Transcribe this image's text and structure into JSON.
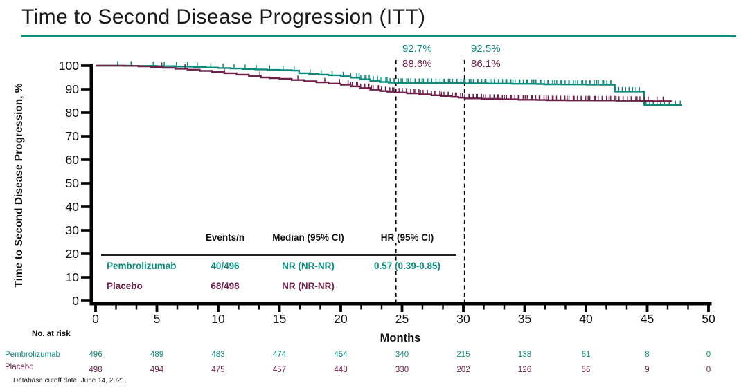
{
  "title": "Time to Second Disease Progression (ITT)",
  "footer": "Database cutoff date: June 14, 2021.",
  "colors": {
    "pembrolizumab": "#0E8A7D",
    "placebo": "#6E2149",
    "axis": "#000000",
    "dashed_line": "#000000"
  },
  "chart_data": {
    "type": "line",
    "subtype": "kaplan-meier-step",
    "title": "Time to Second Disease Progression (ITT)",
    "xlabel": "Months",
    "ylabel": "Time to Second Disease Progression, %",
    "xlim": [
      0,
      50
    ],
    "ylim": [
      0,
      100
    ],
    "grid": false,
    "x_ticks": [
      0,
      5,
      10,
      15,
      20,
      25,
      30,
      35,
      40,
      45,
      50
    ],
    "y_ticks": [
      0,
      10,
      20,
      30,
      40,
      50,
      60,
      70,
      80,
      90,
      100
    ],
    "series": [
      {
        "name": "Pembrolizumab",
        "color": "#0E8A7D",
        "steps": [
          [
            0,
            100
          ],
          [
            3,
            99.9
          ],
          [
            5,
            99.8
          ],
          [
            6.5,
            99.6
          ],
          [
            8,
            99.4
          ],
          [
            9,
            99.2
          ],
          [
            10,
            99.0
          ],
          [
            11,
            98.8
          ],
          [
            12,
            98.6
          ],
          [
            13,
            98.4
          ],
          [
            14,
            98.2
          ],
          [
            15,
            98.1
          ],
          [
            16,
            97.9
          ],
          [
            16.6,
            96.8
          ],
          [
            17.4,
            96.5
          ],
          [
            18.2,
            96.2
          ],
          [
            19,
            95.9
          ],
          [
            20,
            95.5
          ],
          [
            20.8,
            94.9
          ],
          [
            21.6,
            94.2
          ],
          [
            22.4,
            93.6
          ],
          [
            23.2,
            93.1
          ],
          [
            23.9,
            92.8
          ],
          [
            24.4,
            92.7
          ],
          [
            26,
            92.65
          ],
          [
            28,
            92.6
          ],
          [
            30.1,
            92.5
          ],
          [
            32,
            92.4
          ],
          [
            34,
            92.3
          ],
          [
            36,
            92.2
          ],
          [
            36.6,
            92.05
          ],
          [
            38,
            92.0
          ],
          [
            40,
            91.95
          ],
          [
            41.3,
            91.9
          ],
          [
            42.35,
            89.0
          ],
          [
            44.75,
            83.2
          ],
          [
            47.8,
            83.2
          ]
        ],
        "censor_sparse": [
          1.8,
          2.9,
          4.7,
          5.6,
          6.6,
          7.5,
          8.3,
          9.4,
          10.4,
          11.3,
          12.2,
          13.1,
          14.2,
          15.3,
          16.2,
          17.5,
          18.4,
          19.3,
          20.2,
          20.8,
          46.8,
          47.3,
          47.7
        ],
        "censor_dense": [
          {
            "from": 21.3,
            "to": 42.2,
            "step": 0.34
          },
          {
            "from": 21.5,
            "to": 42.1,
            "step": 0.57
          },
          {
            "from": 42.4,
            "to": 44.6,
            "step": 0.28
          },
          {
            "from": 44.9,
            "to": 46.4,
            "step": 0.3
          }
        ]
      },
      {
        "name": "Placebo",
        "color": "#6E2149",
        "steps": [
          [
            0,
            100
          ],
          [
            2.3,
            99.9
          ],
          [
            3.5,
            99.7
          ],
          [
            4.5,
            99.4
          ],
          [
            5.5,
            99.1
          ],
          [
            6.5,
            98.7
          ],
          [
            7.5,
            98.3
          ],
          [
            8.5,
            97.8
          ],
          [
            9.5,
            97.3
          ],
          [
            10.5,
            96.8
          ],
          [
            11.5,
            96.2
          ],
          [
            12.5,
            95.6
          ],
          [
            13.5,
            95.0
          ],
          [
            14.2,
            94.7
          ],
          [
            15,
            94.4
          ],
          [
            16,
            93.9
          ],
          [
            17,
            93.4
          ],
          [
            18,
            92.9
          ],
          [
            19,
            92.4
          ],
          [
            20,
            91.9
          ],
          [
            20.8,
            91.2
          ],
          [
            21.6,
            90.5
          ],
          [
            22.4,
            89.8
          ],
          [
            23.2,
            89.2
          ],
          [
            23.8,
            88.9
          ],
          [
            24.4,
            88.6
          ],
          [
            25.4,
            88.2
          ],
          [
            26.4,
            87.8
          ],
          [
            27.4,
            87.4
          ],
          [
            28.2,
            87.0
          ],
          [
            29,
            86.7
          ],
          [
            29.6,
            86.4
          ],
          [
            30.1,
            86.1
          ],
          [
            31.5,
            85.9
          ],
          [
            33,
            85.7
          ],
          [
            34.5,
            85.5
          ],
          [
            36,
            85.4
          ],
          [
            36.8,
            85.3
          ],
          [
            38.5,
            85.25
          ],
          [
            40.5,
            85.2
          ],
          [
            42.5,
            85.1
          ],
          [
            44.5,
            85.0
          ],
          [
            45.4,
            84.9
          ],
          [
            47,
            84.9
          ]
        ],
        "censor_sparse": [
          5.4,
          7.3,
          10.5,
          13.4,
          16.5,
          18.7,
          19.9,
          45.8,
          46.3
        ],
        "censor_dense": [
          {
            "from": 20.6,
            "to": 45.2,
            "step": 0.34
          },
          {
            "from": 20.8,
            "to": 45.1,
            "step": 0.57
          }
        ]
      }
    ],
    "landmarks": [
      {
        "x": 24.5,
        "labels": [
          {
            "series": "Pembrolizumab",
            "text": "92.7%"
          },
          {
            "series": "Placebo",
            "text": "88.6%"
          }
        ]
      },
      {
        "x": 30.1,
        "labels": [
          {
            "series": "Pembrolizumab",
            "text": "92.5%"
          },
          {
            "series": "Placebo",
            "text": "86.1%"
          }
        ]
      }
    ],
    "summary_table": {
      "headers": [
        "",
        "Events/n",
        "Median (95% CI)",
        "HR (95% CI)"
      ],
      "rows": [
        {
          "name": "Pembrolizumab",
          "events_n": "40/496",
          "median": "NR (NR-NR)",
          "hr": "0.57 (0.39-0.85)"
        },
        {
          "name": "Placebo",
          "events_n": "68/498",
          "median": "NR (NR-NR)",
          "hr": ""
        }
      ]
    },
    "at_risk": {
      "label": "No. at risk",
      "rows": [
        {
          "name": "Pembrolizumab",
          "values": [
            496,
            489,
            483,
            474,
            454,
            340,
            215,
            138,
            61,
            8,
            0
          ]
        },
        {
          "name": "Placebo",
          "values": [
            498,
            494,
            475,
            457,
            448,
            330,
            202,
            126,
            56,
            9,
            0
          ]
        }
      ]
    }
  }
}
